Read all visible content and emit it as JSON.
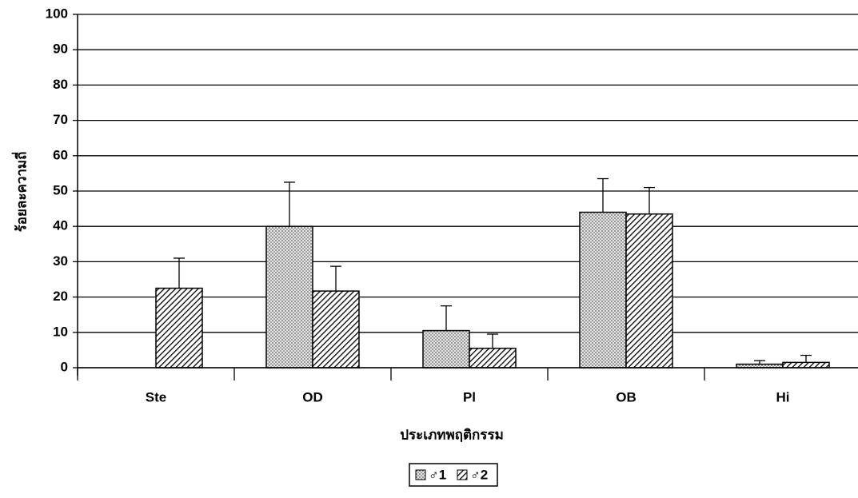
{
  "chart_data": {
    "type": "bar",
    "ylabel": "ร้อยละความถี่",
    "xlabel": "ประเภทพฤติกรรม",
    "categories": [
      "Ste",
      "OD",
      "Pl",
      "OB",
      "Hi"
    ],
    "series": [
      {
        "name": "♂1",
        "color": "#000000",
        "pattern": "dots",
        "values": [
          0,
          40,
          10.5,
          44,
          1
        ],
        "errors": [
          0,
          12.5,
          7,
          9.5,
          1
        ]
      },
      {
        "name": "♂2",
        "color": "#000000",
        "pattern": "hatch",
        "values": [
          22.5,
          21.7,
          5.5,
          43.5,
          1.5
        ],
        "errors": [
          8.5,
          7,
          4,
          7.5,
          2
        ]
      }
    ],
    "ylim": [
      0,
      100
    ],
    "yticks": [
      0,
      10,
      20,
      30,
      40,
      50,
      60,
      70,
      80,
      90,
      100
    ],
    "grid": true,
    "legend": "bottom"
  }
}
